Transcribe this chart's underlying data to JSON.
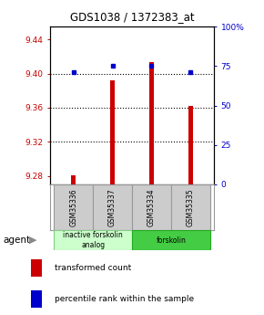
{
  "title": "GDS1038 / 1372383_at",
  "samples": [
    "GSM35336",
    "GSM35337",
    "GSM35334",
    "GSM35335"
  ],
  "transformed_counts": [
    9.281,
    9.392,
    9.413,
    9.362
  ],
  "percentile_ranks": [
    71,
    75,
    75,
    71
  ],
  "ylim_left": [
    9.27,
    9.455
  ],
  "ylim_right": [
    0,
    100
  ],
  "yticks_left": [
    9.28,
    9.32,
    9.36,
    9.4,
    9.44
  ],
  "yticks_right": [
    0,
    25,
    50,
    75,
    100
  ],
  "ytick_labels_left": [
    "9.28",
    "9.32",
    "9.36",
    "9.40",
    "9.44"
  ],
  "ytick_labels_right": [
    "0",
    "25",
    "50",
    "75",
    "100%"
  ],
  "bar_color": "#cc0000",
  "dot_color": "#0000cc",
  "bar_bottom": 9.27,
  "bar_width": 0.12,
  "agent_groups": [
    {
      "label": "inactive forskolin\nanalog",
      "color": "#ccffcc",
      "edge_color": "#88cc88"
    },
    {
      "label": "forskolin",
      "color": "#44cc44",
      "edge_color": "#22aa22"
    }
  ],
  "legend_bar_label": "transformed count",
  "legend_dot_label": "percentile rank within the sample",
  "sample_box_color": "#cccccc",
  "sample_box_edge": "#999999",
  "axis_label_color_left": "#cc0000",
  "axis_label_color_right": "#0000cc",
  "background_color": "#ffffff",
  "grid_ticks": [
    9.32,
    9.36,
    9.4
  ]
}
